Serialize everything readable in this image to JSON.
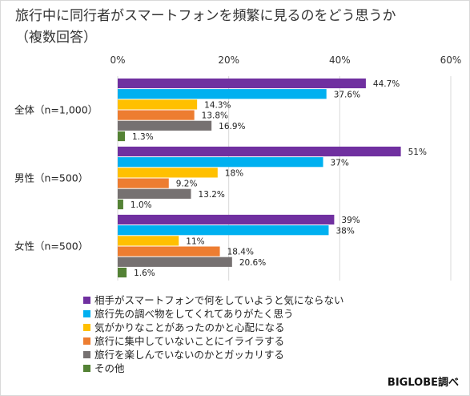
{
  "chart_data": {
    "type": "bar",
    "orientation": "horizontal",
    "title": "旅行中に同行者がスマートフォンを頻繁に見るのをどう思うか\n（複数回答）",
    "xlim": [
      0,
      60
    ],
    "xticks": [
      "0%",
      "20%",
      "40%",
      "60%"
    ],
    "grid": true,
    "legend_position": "bottom-left",
    "source": "BIGLOBE調べ",
    "groups": [
      {
        "label": "全体（n=1,000）",
        "values": [
          44.7,
          37.6,
          14.3,
          13.8,
          16.9,
          1.3
        ],
        "value_labels": [
          "44.7%",
          "37.6%",
          "14.3%",
          "13.8%",
          "16.9%",
          "1.3%"
        ]
      },
      {
        "label": "男性（n=500）",
        "values": [
          51,
          37,
          18,
          9.2,
          13.2,
          1.0
        ],
        "value_labels": [
          "51%",
          "37%",
          "18%",
          "9.2%",
          "13.2%",
          "1.0%"
        ]
      },
      {
        "label": "女性（n=500）",
        "values": [
          39,
          38,
          11,
          18.4,
          20.6,
          1.6
        ],
        "value_labels": [
          "39%",
          "38%",
          "11%",
          "18.4%",
          "20.6%",
          "1.6%"
        ]
      }
    ],
    "series": [
      {
        "name": "相手がスマートフォンで何をしていようと気にならない",
        "color": "#7030a0"
      },
      {
        "name": "旅行先の調べ物をしてくれてありがたく思う",
        "color": "#00b0f0"
      },
      {
        "name": "気がかりなことがあったのかと心配になる",
        "color": "#ffc000"
      },
      {
        "name": "旅行に集中していないことにイライラする",
        "color": "#ed7d31"
      },
      {
        "name": "旅行を楽しんでいないのかとガッカリする",
        "color": "#767171"
      },
      {
        "name": "その他",
        "color": "#548235"
      }
    ]
  }
}
